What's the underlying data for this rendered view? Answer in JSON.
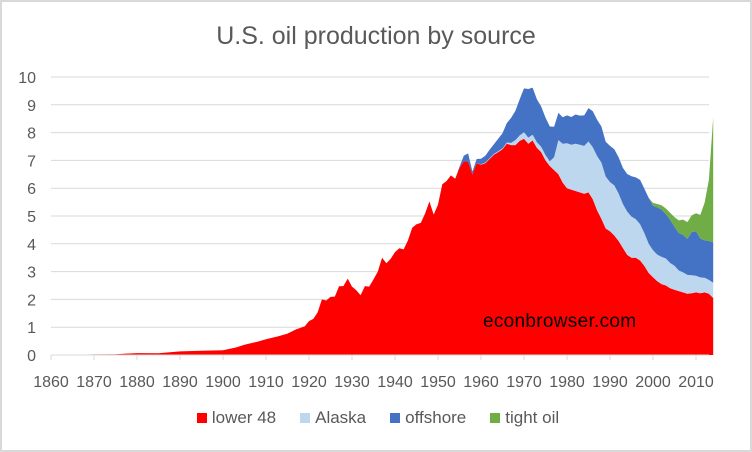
{
  "chart_data": {
    "type": "area",
    "stacked": true,
    "title": "U.S. oil production by source",
    "xlabel": "",
    "ylabel": "",
    "xlim": [
      1860,
      2014
    ],
    "ylim": [
      0,
      10
    ],
    "x_ticks": [
      1860,
      1870,
      1880,
      1890,
      1900,
      1910,
      1920,
      1930,
      1940,
      1950,
      1960,
      1970,
      1980,
      1990,
      2000,
      2010
    ],
    "y_ticks": [
      0,
      1,
      2,
      3,
      4,
      5,
      6,
      7,
      8,
      9,
      10
    ],
    "grid": true,
    "legend_position": "bottom",
    "annotation": "econbrowser.com",
    "x": [
      1860,
      1865,
      1870,
      1875,
      1880,
      1885,
      1890,
      1895,
      1900,
      1903,
      1905,
      1908,
      1910,
      1913,
      1915,
      1917,
      1919,
      1920,
      1921,
      1922,
      1923,
      1924,
      1925,
      1926,
      1927,
      1928,
      1929,
      1930,
      1931,
      1932,
      1933,
      1934,
      1935,
      1936,
      1937,
      1938,
      1939,
      1940,
      1941,
      1942,
      1943,
      1944,
      1945,
      1946,
      1947,
      1948,
      1949,
      1950,
      1951,
      1952,
      1953,
      1954,
      1955,
      1956,
      1957,
      1958,
      1959,
      1960,
      1961,
      1962,
      1963,
      1964,
      1965,
      1966,
      1967,
      1968,
      1969,
      1970,
      1971,
      1972,
      1973,
      1974,
      1975,
      1976,
      1977,
      1978,
      1979,
      1980,
      1981,
      1982,
      1983,
      1984,
      1985,
      1986,
      1987,
      1988,
      1989,
      1990,
      1991,
      1992,
      1993,
      1994,
      1995,
      1996,
      1997,
      1998,
      1999,
      2000,
      2001,
      2002,
      2003,
      2004,
      2005,
      2006,
      2007,
      2008,
      2009,
      2010,
      2011,
      2012,
      2013,
      2014
    ],
    "series": [
      {
        "name": "lower 48",
        "color": "#FF0000",
        "values": [
          0,
          0.01,
          0.02,
          0.03,
          0.07,
          0.06,
          0.13,
          0.15,
          0.17,
          0.27,
          0.37,
          0.48,
          0.57,
          0.68,
          0.77,
          0.92,
          1.03,
          1.22,
          1.3,
          1.53,
          2.0,
          1.96,
          2.09,
          2.1,
          2.47,
          2.48,
          2.75,
          2.46,
          2.33,
          2.15,
          2.48,
          2.46,
          2.72,
          3.0,
          3.5,
          3.3,
          3.46,
          3.7,
          3.84,
          3.8,
          4.12,
          4.58,
          4.7,
          4.75,
          5.09,
          5.52,
          5.05,
          5.41,
          6.14,
          6.26,
          6.46,
          6.34,
          6.73,
          6.97,
          6.95,
          6.5,
          6.9,
          6.85,
          6.9,
          7.05,
          7.2,
          7.3,
          7.4,
          7.6,
          7.55,
          7.55,
          7.7,
          7.78,
          7.6,
          7.72,
          7.45,
          7.3,
          7.0,
          6.8,
          6.65,
          6.5,
          6.2,
          6.0,
          5.95,
          5.9,
          5.85,
          5.8,
          5.85,
          5.6,
          5.2,
          4.9,
          4.55,
          4.45,
          4.3,
          4.1,
          3.85,
          3.6,
          3.5,
          3.5,
          3.4,
          3.2,
          2.95,
          2.8,
          2.65,
          2.55,
          2.5,
          2.4,
          2.35,
          2.3,
          2.25,
          2.2,
          2.22,
          2.25,
          2.22,
          2.25,
          2.2,
          2.05
        ]
      },
      {
        "name": "Alaska",
        "color": "#BDD7EE",
        "values": [
          0,
          0,
          0,
          0,
          0,
          0,
          0,
          0,
          0,
          0,
          0,
          0,
          0,
          0,
          0,
          0,
          0,
          0,
          0,
          0,
          0,
          0,
          0,
          0,
          0,
          0,
          0,
          0,
          0,
          0,
          0,
          0,
          0,
          0,
          0,
          0,
          0,
          0,
          0,
          0,
          0,
          0,
          0,
          0,
          0,
          0,
          0,
          0,
          0,
          0,
          0,
          0,
          0,
          0,
          0,
          0,
          0,
          0.01,
          0.02,
          0.03,
          0.03,
          0.03,
          0.03,
          0.04,
          0.08,
          0.18,
          0.2,
          0.23,
          0.22,
          0.2,
          0.2,
          0.19,
          0.19,
          0.17,
          0.46,
          1.23,
          1.4,
          1.62,
          1.61,
          1.7,
          1.71,
          1.72,
          1.83,
          1.87,
          1.96,
          2.02,
          1.87,
          1.77,
          1.8,
          1.71,
          1.58,
          1.56,
          1.48,
          1.39,
          1.3,
          1.18,
          1.05,
          0.97,
          0.96,
          0.98,
          0.97,
          0.91,
          0.86,
          0.74,
          0.72,
          0.68,
          0.65,
          0.6,
          0.57,
          0.53,
          0.5,
          0.55
        ]
      },
      {
        "name": "offshore",
        "color": "#4472C4",
        "values": [
          0,
          0,
          0,
          0,
          0,
          0,
          0,
          0,
          0,
          0,
          0,
          0,
          0,
          0,
          0,
          0,
          0,
          0,
          0,
          0,
          0,
          0,
          0,
          0,
          0,
          0,
          0,
          0,
          0,
          0,
          0,
          0,
          0,
          0,
          0,
          0,
          0,
          0,
          0,
          0,
          0,
          0,
          0,
          0,
          0,
          0,
          0,
          0,
          0,
          0,
          0,
          0,
          0.04,
          0.2,
          0.3,
          0.1,
          0.15,
          0.2,
          0.25,
          0.3,
          0.35,
          0.45,
          0.55,
          0.7,
          0.9,
          1.05,
          1.3,
          1.58,
          1.75,
          1.7,
          1.55,
          1.45,
          1.35,
          1.25,
          1.1,
          0.98,
          0.95,
          1.0,
          1.0,
          1.05,
          1.05,
          1.1,
          1.2,
          1.3,
          1.3,
          1.3,
          1.25,
          1.3,
          1.3,
          1.3,
          1.3,
          1.35,
          1.45,
          1.5,
          1.6,
          1.6,
          1.65,
          1.6,
          1.7,
          1.7,
          1.6,
          1.55,
          1.4,
          1.35,
          1.35,
          1.3,
          1.55,
          1.6,
          1.4,
          1.35,
          1.4,
          1.45
        ]
      },
      {
        "name": "tight oil",
        "color": "#70AD47",
        "values": [
          0,
          0,
          0,
          0,
          0,
          0,
          0,
          0,
          0,
          0,
          0,
          0,
          0,
          0,
          0,
          0,
          0,
          0,
          0,
          0,
          0,
          0,
          0,
          0,
          0,
          0,
          0,
          0,
          0,
          0,
          0,
          0,
          0,
          0,
          0,
          0,
          0,
          0,
          0,
          0,
          0,
          0,
          0,
          0,
          0,
          0,
          0,
          0,
          0,
          0,
          0,
          0,
          0,
          0,
          0,
          0,
          0,
          0,
          0,
          0,
          0,
          0,
          0,
          0,
          0,
          0,
          0,
          0,
          0,
          0,
          0,
          0,
          0,
          0,
          0,
          0,
          0,
          0,
          0,
          0,
          0,
          0,
          0,
          0,
          0,
          0,
          0,
          0,
          0,
          0,
          0,
          0,
          0,
          0,
          0,
          0,
          0,
          0.1,
          0.12,
          0.15,
          0.2,
          0.25,
          0.35,
          0.45,
          0.55,
          0.6,
          0.6,
          0.65,
          0.85,
          1.35,
          2.2,
          4.5
        ]
      }
    ]
  },
  "legend": {
    "items": [
      {
        "label": "lower 48",
        "color": "#FF0000"
      },
      {
        "label": "Alaska",
        "color": "#BDD7EE"
      },
      {
        "label": "offshore",
        "color": "#4472C4"
      },
      {
        "label": "tight oil",
        "color": "#70AD47"
      }
    ]
  }
}
